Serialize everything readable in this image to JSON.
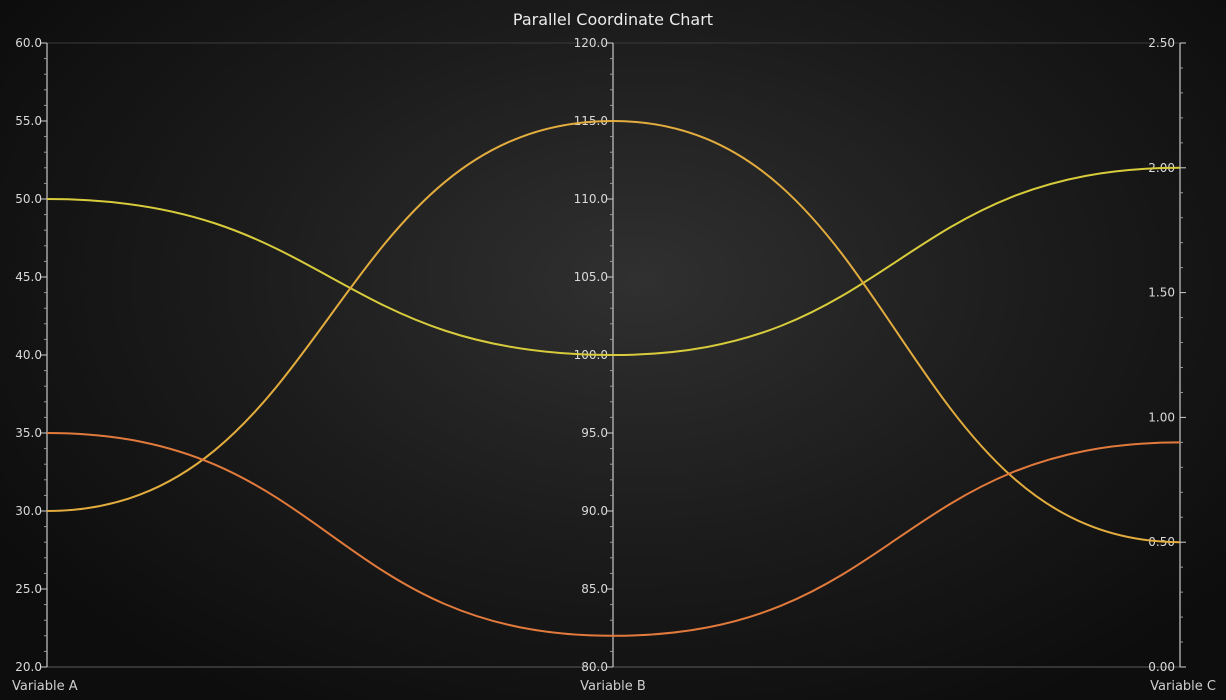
{
  "chart_data": {
    "type": "parallel-coordinates",
    "title": "Parallel Coordinate Chart",
    "axes": [
      {
        "name": "Variable A",
        "range": [
          20,
          60
        ],
        "ticks": [
          "20.0",
          "25.0",
          "30.0",
          "35.0",
          "40.0",
          "45.0",
          "50.0",
          "55.0",
          "60.0"
        ],
        "tick_values": [
          20,
          25,
          30,
          35,
          40,
          45,
          50,
          55,
          60
        ],
        "ticks_side": "left"
      },
      {
        "name": "Variable B",
        "range": [
          80,
          120
        ],
        "ticks": [
          "80.0",
          "85.0",
          "90.0",
          "95.0",
          "100.0",
          "105.0",
          "110.0",
          "115.0",
          "120.0"
        ],
        "tick_values": [
          80,
          85,
          90,
          95,
          100,
          105,
          110,
          115,
          120
        ],
        "ticks_side": "left"
      },
      {
        "name": "Variable C",
        "range": [
          0,
          2.5
        ],
        "ticks": [
          "0.00",
          "0.50",
          "1.00",
          "1.50",
          "2.00",
          "2.50"
        ],
        "tick_values": [
          0,
          0.5,
          1,
          1.5,
          2,
          2.5
        ],
        "ticks_side": "right"
      }
    ],
    "series": [
      {
        "values": [
          50,
          100,
          2.0
        ],
        "color": "#d8cc3c"
      },
      {
        "values": [
          30,
          115,
          0.5
        ],
        "color": "#e2ac3e"
      },
      {
        "values": [
          35,
          82,
          0.9
        ],
        "color": "#e27a3c"
      }
    ],
    "grid": false,
    "legend": "none"
  }
}
